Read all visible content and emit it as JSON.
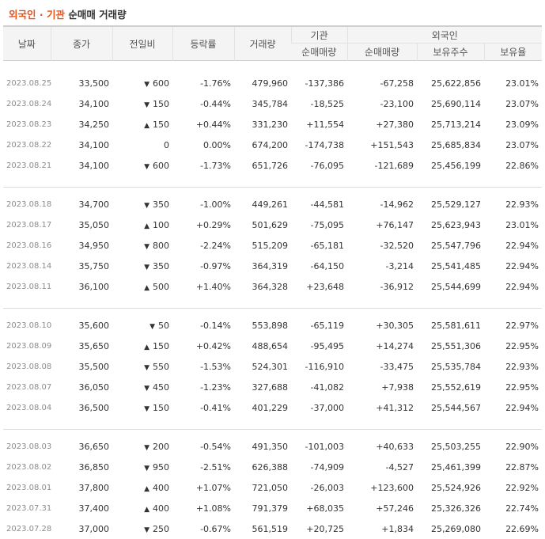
{
  "title": {
    "part1": "외국인 · 기관",
    "part2": "순매매 거래량"
  },
  "headers": {
    "date": "날짜",
    "close": "종가",
    "change": "전일비",
    "rate": "등락률",
    "volume": "거래량",
    "institution": "기관",
    "foreign": "외국인",
    "inst_net": "순매매량",
    "foreign_net": "순매매량",
    "shares_held": "보유주수",
    "holding_ratio": "보유율"
  },
  "colors": {
    "up": "#e0151c",
    "down": "#1a5ac8",
    "title_accent": "#e8541c"
  },
  "groups": [
    {
      "rows": [
        {
          "date": "2023.08.25",
          "close": "33,500",
          "dir": "down",
          "change": "600",
          "rate": "-1.76%",
          "volume": "479,960",
          "inst": "-137,386",
          "foreign": "-67,258",
          "held": "25,622,856",
          "ratio": "23.01%"
        },
        {
          "date": "2023.08.24",
          "close": "34,100",
          "dir": "down",
          "change": "150",
          "rate": "-0.44%",
          "volume": "345,784",
          "inst": "-18,525",
          "foreign": "-23,100",
          "held": "25,690,114",
          "ratio": "23.07%"
        },
        {
          "date": "2023.08.23",
          "close": "34,250",
          "dir": "up",
          "change": "150",
          "rate": "+0.44%",
          "volume": "331,230",
          "inst": "+11,554",
          "foreign": "+27,380",
          "held": "25,713,214",
          "ratio": "23.09%"
        },
        {
          "date": "2023.08.22",
          "close": "34,100",
          "dir": "none",
          "change": "0",
          "rate": "0.00%",
          "volume": "674,200",
          "inst": "-174,738",
          "foreign": "+151,543",
          "held": "25,685,834",
          "ratio": "23.07%"
        },
        {
          "date": "2023.08.21",
          "close": "34,100",
          "dir": "down",
          "change": "600",
          "rate": "-1.73%",
          "volume": "651,726",
          "inst": "-76,095",
          "foreign": "-121,689",
          "held": "25,456,199",
          "ratio": "22.86%"
        }
      ]
    },
    {
      "rows": [
        {
          "date": "2023.08.18",
          "close": "34,700",
          "dir": "down",
          "change": "350",
          "rate": "-1.00%",
          "volume": "449,261",
          "inst": "-44,581",
          "foreign": "-14,962",
          "held": "25,529,127",
          "ratio": "22.93%"
        },
        {
          "date": "2023.08.17",
          "close": "35,050",
          "dir": "up",
          "change": "100",
          "rate": "+0.29%",
          "volume": "501,629",
          "inst": "-75,095",
          "foreign": "+76,147",
          "held": "25,623,943",
          "ratio": "23.01%"
        },
        {
          "date": "2023.08.16",
          "close": "34,950",
          "dir": "down",
          "change": "800",
          "rate": "-2.24%",
          "volume": "515,209",
          "inst": "-65,181",
          "foreign": "-32,520",
          "held": "25,547,796",
          "ratio": "22.94%"
        },
        {
          "date": "2023.08.14",
          "close": "35,750",
          "dir": "down",
          "change": "350",
          "rate": "-0.97%",
          "volume": "364,319",
          "inst": "-64,150",
          "foreign": "-3,214",
          "held": "25,541,485",
          "ratio": "22.94%"
        },
        {
          "date": "2023.08.11",
          "close": "36,100",
          "dir": "up",
          "change": "500",
          "rate": "+1.40%",
          "volume": "364,328",
          "inst": "+23,648",
          "foreign": "-36,912",
          "held": "25,544,699",
          "ratio": "22.94%"
        }
      ]
    },
    {
      "rows": [
        {
          "date": "2023.08.10",
          "close": "35,600",
          "dir": "down",
          "change": "50",
          "rate": "-0.14%",
          "volume": "553,898",
          "inst": "-65,119",
          "foreign": "+30,305",
          "held": "25,581,611",
          "ratio": "22.97%"
        },
        {
          "date": "2023.08.09",
          "close": "35,650",
          "dir": "up",
          "change": "150",
          "rate": "+0.42%",
          "volume": "488,654",
          "inst": "-95,495",
          "foreign": "+14,274",
          "held": "25,551,306",
          "ratio": "22.95%"
        },
        {
          "date": "2023.08.08",
          "close": "35,500",
          "dir": "down",
          "change": "550",
          "rate": "-1.53%",
          "volume": "524,301",
          "inst": "-116,910",
          "foreign": "-33,475",
          "held": "25,535,784",
          "ratio": "22.93%"
        },
        {
          "date": "2023.08.07",
          "close": "36,050",
          "dir": "down",
          "change": "450",
          "rate": "-1.23%",
          "volume": "327,688",
          "inst": "-41,082",
          "foreign": "+7,938",
          "held": "25,552,619",
          "ratio": "22.95%"
        },
        {
          "date": "2023.08.04",
          "close": "36,500",
          "dir": "down",
          "change": "150",
          "rate": "-0.41%",
          "volume": "401,229",
          "inst": "-37,000",
          "foreign": "+41,312",
          "held": "25,544,567",
          "ratio": "22.94%"
        }
      ]
    },
    {
      "rows": [
        {
          "date": "2023.08.03",
          "close": "36,650",
          "dir": "down",
          "change": "200",
          "rate": "-0.54%",
          "volume": "491,350",
          "inst": "-101,003",
          "foreign": "+40,633",
          "held": "25,503,255",
          "ratio": "22.90%"
        },
        {
          "date": "2023.08.02",
          "close": "36,850",
          "dir": "down",
          "change": "950",
          "rate": "-2.51%",
          "volume": "626,388",
          "inst": "-74,909",
          "foreign": "-4,527",
          "held": "25,461,399",
          "ratio": "22.87%"
        },
        {
          "date": "2023.08.01",
          "close": "37,800",
          "dir": "up",
          "change": "400",
          "rate": "+1.07%",
          "volume": "721,050",
          "inst": "-26,003",
          "foreign": "+123,600",
          "held": "25,524,926",
          "ratio": "22.92%"
        },
        {
          "date": "2023.07.31",
          "close": "37,400",
          "dir": "up",
          "change": "400",
          "rate": "+1.08%",
          "volume": "791,379",
          "inst": "+68,035",
          "foreign": "+57,246",
          "held": "25,326,326",
          "ratio": "22.74%"
        },
        {
          "date": "2023.07.28",
          "close": "37,000",
          "dir": "down",
          "change": "250",
          "rate": "-0.67%",
          "volume": "561,519",
          "inst": "+20,725",
          "foreign": "+1,834",
          "held": "25,269,080",
          "ratio": "22.69%"
        }
      ]
    }
  ]
}
